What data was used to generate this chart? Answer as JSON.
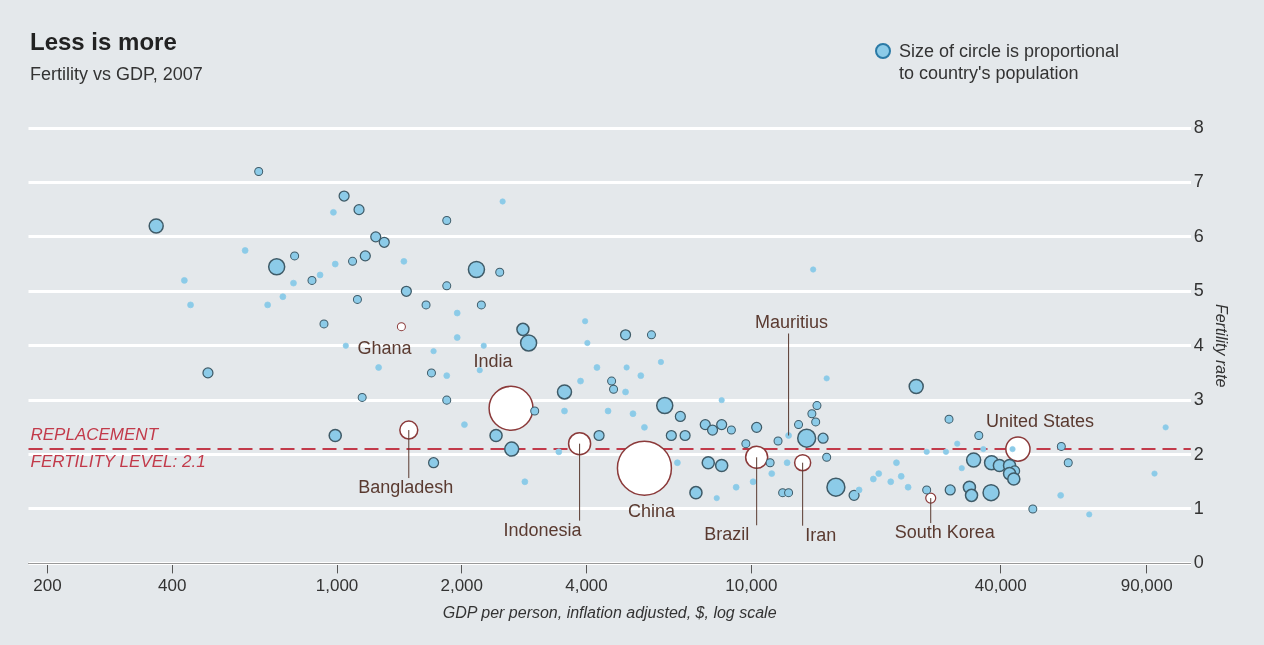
{
  "chart_data": {
    "type": "bubble",
    "title": "Less is more",
    "subtitle": "Fertility vs GDP, 2007",
    "xlabel": "GDP per person, inflation adjusted, $, log scale",
    "ylabel": "Fertility rate",
    "log": "x",
    "grid": "y",
    "legend": false,
    "xlim": [
      180,
      115000
    ],
    "xticks": [
      200,
      400,
      {
        "value": 1000,
        "label": "1,000"
      },
      {
        "value": 2000,
        "label": "2,000"
      },
      {
        "value": 4000,
        "label": "4,000"
      },
      {
        "value": 10000,
        "label": "10,000"
      },
      {
        "value": 40000,
        "label": "40,000"
      },
      {
        "value": 90000,
        "label": "90,000"
      }
    ],
    "ylim": [
      0,
      8
    ],
    "yticks": [
      0,
      1,
      2,
      3,
      4,
      5,
      6,
      7,
      8
    ],
    "series": [
      {
        "color": "#8ccbe8",
        "x": [
          366,
          428,
          443,
          488,
          600,
          647,
          715,
          680,
          740,
          790,
          785,
          870,
          910,
          990,
          1090,
          1170,
          1040,
          980,
          1130,
          930,
          1120,
          1050,
          1260,
          1150,
          990,
          1240,
          1300,
          1450,
          1470,
          1640,
          1710,
          1690,
          1710,
          1840,
          1840,
          1840,
          1840,
          2510,
          2170,
          2470,
          2230,
          1950,
          1950,
          2260,
          2810,
          2900,
          2210,
          2030,
          2420,
          2640,
          3000,
          2840,
          3970,
          4020,
          4970,
          5740,
          6050,
          5000,
          5410,
          4240,
          3870,
          3540,
          4600,
          4650,
          4970,
          3540,
          3430,
          4510,
          5180,
          5520,
          6180,
          6740,
          6410,
          6920,
          4290,
          6630,
          8480,
          7740,
          8060,
          8480,
          8950,
          7350,
          8250,
          7870,
          8480,
          9190,
          9700,
          10300,
          10100,
          11100,
          11200,
          11600,
          12200,
          11900,
          12300,
          13000,
          13600,
          14300,
          14400,
          14000,
          14900,
          15200,
          16000,
          17700,
          14100,
          15200,
          25000,
          30000,
          100000,
          35400,
          26500,
          29500,
          31400,
          36300,
          42700,
          56000,
          58200,
          34400,
          38000,
          39700,
          42000,
          43200,
          32200,
          22400,
          20300,
          19700,
          21700,
          23000,
          23900,
          26500,
          30200,
          33600,
          34000,
          37900,
          42000,
          43000,
          55800,
          47800,
          65400,
          94000,
          18200,
          12300
        ],
        "values": [
          6.2,
          5.2,
          4.75,
          3.5,
          5.75,
          7.2,
          5.45,
          4.75,
          4.9,
          5.65,
          5.15,
          5.2,
          5.3,
          5.5,
          5.55,
          5.65,
          6.75,
          6.45,
          6.5,
          4.4,
          4.85,
          4.0,
          3.6,
          3.05,
          2.35,
          6.0,
          5.9,
          5.55,
          5.0,
          4.75,
          3.9,
          3.5,
          1.85,
          6.3,
          5.1,
          3.45,
          3.0,
          6.65,
          5.4,
          5.35,
          4.75,
          4.6,
          4.15,
          4.0,
          4.3,
          4.05,
          3.55,
          2.55,
          2.35,
          2.1,
          2.8,
          1.5,
          4.45,
          4.05,
          4.2,
          4.2,
          3.7,
          3.6,
          3.45,
          3.6,
          3.35,
          3.15,
          3.35,
          3.2,
          3.15,
          2.8,
          2.05,
          2.8,
          2.75,
          2.5,
          2.9,
          2.7,
          2.35,
          2.35,
          2.35,
          1.85,
          3.0,
          2.55,
          2.45,
          2.55,
          2.45,
          1.3,
          1.2,
          1.85,
          1.8,
          1.4,
          2.2,
          2.5,
          1.5,
          1.85,
          1.65,
          2.25,
          1.85,
          1.3,
          1.3,
          2.55,
          2.3,
          2.6,
          2.9,
          2.75,
          2.3,
          1.95,
          1.4,
          1.25,
          5.4,
          3.4,
          3.25,
          2.65,
          2.5,
          2.35,
          2.05,
          2.05,
          2.2,
          2.1,
          2.1,
          2.15,
          1.85,
          1.9,
          1.85,
          1.8,
          1.8,
          1.7,
          1.75,
          1.85,
          1.65,
          1.55,
          1.5,
          1.6,
          1.4,
          1.35,
          1.35,
          1.4,
          1.25,
          1.3,
          1.65,
          1.55,
          1.25,
          1.0,
          0.9,
          1.65,
          1.35,
          2.35
        ],
        "sizes": [
          0.067,
          0.012,
          0.012,
          0.034,
          0.012,
          0.022,
          0.088,
          0.012,
          0.012,
          0.022,
          0.012,
          0.022,
          0.012,
          0.012,
          0.022,
          0.034,
          0.034,
          0.012,
          0.034,
          0.022,
          0.022,
          0.01,
          0.012,
          0.022,
          0.05,
          0.034,
          0.034,
          0.012,
          0.034,
          0.022,
          0.01,
          0.022,
          0.034,
          0.022,
          0.022,
          0.012,
          0.022,
          0.01,
          0.088,
          0.022,
          0.022,
          0.012,
          0.012,
          0.01,
          0.05,
          0.088,
          0.01,
          0.012,
          0.05,
          0.067,
          0.022,
          0.012,
          0.01,
          0.01,
          0.034,
          0.022,
          0.01,
          0.01,
          0.012,
          0.012,
          0.012,
          0.067,
          0.022,
          0.022,
          0.012,
          0.012,
          0.012,
          0.012,
          0.012,
          0.012,
          0.088,
          0.034,
          0.034,
          0.034,
          0.034,
          0.012,
          0.01,
          0.034,
          0.034,
          0.034,
          0.022,
          0.05,
          0.01,
          0.05,
          0.05,
          0.012,
          0.022,
          0.034,
          0.012,
          0.022,
          0.012,
          0.022,
          0.012,
          0.022,
          0.022,
          0.022,
          0.11,
          0.022,
          0.022,
          0.022,
          0.034,
          0.022,
          0.11,
          0.034,
          0.01,
          0.01,
          0.067,
          0.022,
          0.01,
          0.022,
          0.01,
          0.01,
          0.01,
          0.01,
          0.01,
          0.022,
          0.022,
          0.067,
          0.067,
          0.05,
          0.05,
          0.034,
          0.01,
          0.012,
          0.012,
          0.012,
          0.012,
          0.012,
          0.012,
          0.022,
          0.034,
          0.05,
          0.05,
          0.088,
          0.05,
          0.05,
          0.012,
          0.022,
          0.01,
          0.01,
          0.012,
          0.012
        ]
      },
      {
        "color": "#ffffff",
        "x": [
          1430,
          2630,
          1490,
          3850,
          5520,
          10300,
          13300,
          27100,
          44000
        ],
        "values": [
          4.35,
          2.85,
          2.45,
          2.2,
          1.75,
          1.95,
          1.85,
          1.2,
          2.1
        ],
        "sizes": [
          0.022,
          0.66,
          0.11,
          0.166,
          1,
          0.166,
          0.088,
          0.034,
          0.2
        ]
      }
    ],
    "ref_lines": [
      {
        "axis": "y",
        "value": 2.1,
        "label": "REPLACEMENT\nFERTILITY LEVEL: 2.1",
        "color": "#c23a4a",
        "line_style": "dashed"
      }
    ],
    "annotations": [
      "Size of circle is proportional\nto country's population",
      {
        "text": "Ghana",
        "x": 1430,
        "y": 4.35
      },
      {
        "text": "India",
        "x": 2630,
        "y": 2.85
      },
      {
        "text": "Bangladesh",
        "x": 1490,
        "y": 2.45
      },
      {
        "text": "Indonesia",
        "x": 3850,
        "y": 2.2
      },
      {
        "text": "China",
        "x": 5520,
        "y": 1.75
      },
      {
        "text": "Brazil",
        "x": 10300,
        "y": 1.95
      },
      {
        "text": "Iran",
        "x": 13300,
        "y": 1.85
      },
      {
        "text": "Mauritius",
        "x": 12300,
        "y": 2.35
      },
      {
        "text": "South Korea",
        "x": 27100,
        "y": 1.2
      },
      {
        "text": "United States",
        "x": 44000,
        "y": 2.1
      }
    ]
  }
}
